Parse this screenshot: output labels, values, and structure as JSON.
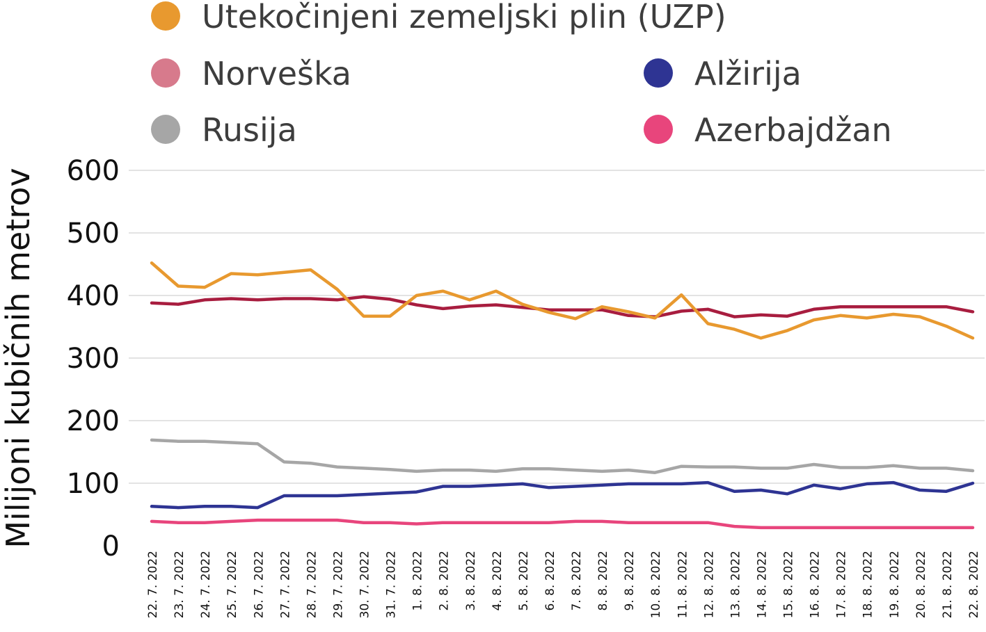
{
  "chart_data": {
    "type": "line",
    "title": "",
    "xlabel": "",
    "ylabel": "Milijoni kubičnih metrov",
    "ylim": [
      0,
      600
    ],
    "yticks": [
      0,
      100,
      200,
      300,
      400,
      500,
      600
    ],
    "grid": true,
    "legend_position": "top",
    "x": [
      "22. 7. 2022",
      "23. 7. 2022",
      "24. 7. 2022",
      "25. 7. 2022",
      "26. 7. 2022",
      "27. 7. 2022",
      "28. 7. 2022",
      "29. 7. 2022",
      "30. 7. 2022",
      "31. 7. 2022",
      "1. 8. 2022",
      "2. 8. 2022",
      "3. 8. 2022",
      "4. 8. 2022",
      "5. 8. 2022",
      "6. 8. 2022",
      "7. 8. 2022",
      "8. 8. 2022",
      "9. 8. 2022",
      "10. 8. 2022",
      "11. 8. 2022",
      "12. 8. 2022",
      "13. 8. 2022",
      "14. 8. 2022",
      "15. 8. 2022",
      "16. 8. 2022",
      "17. 8. 2022",
      "18. 8. 2022",
      "19. 8. 2022",
      "20. 8. 2022",
      "21. 8. 2022",
      "22. 8. 2022"
    ],
    "series": [
      {
        "name": "Utekočinjeni zemeljski plin (UZP)",
        "color": "#E8992F",
        "values": [
          452,
          415,
          413,
          435,
          433,
          437,
          441,
          410,
          367,
          367,
          400,
          407,
          393,
          407,
          386,
          373,
          363,
          382,
          374,
          364,
          401,
          355,
          346,
          332,
          344,
          361,
          368,
          364,
          370,
          366,
          351,
          332
        ]
      },
      {
        "name": "Norveška",
        "color": "#A81D3F",
        "legend_color": "#D77A8C",
        "values": [
          388,
          386,
          393,
          395,
          393,
          395,
          395,
          393,
          398,
          394,
          385,
          379,
          383,
          385,
          381,
          377,
          377,
          377,
          368,
          366,
          375,
          378,
          366,
          369,
          367,
          378,
          382,
          382,
          382,
          382,
          382,
          374
        ]
      },
      {
        "name": "Alžirija",
        "color": "#2E3493",
        "values": [
          63,
          61,
          63,
          63,
          61,
          80,
          80,
          80,
          82,
          84,
          86,
          95,
          95,
          97,
          99,
          93,
          95,
          97,
          99,
          99,
          99,
          101,
          87,
          89,
          83,
          97,
          91,
          99,
          101,
          89,
          87,
          100
        ]
      },
      {
        "name": "Rusija",
        "color": "#A6A6A6",
        "values": [
          169,
          167,
          167,
          165,
          163,
          134,
          132,
          126,
          124,
          122,
          119,
          121,
          121,
          119,
          123,
          123,
          121,
          119,
          121,
          117,
          127,
          126,
          126,
          124,
          124,
          130,
          125,
          125,
          128,
          124,
          124,
          120
        ]
      },
      {
        "name": "Azerbajdžan",
        "color": "#E8457C",
        "values": [
          39,
          37,
          37,
          39,
          41,
          41,
          41,
          41,
          37,
          37,
          35,
          37,
          37,
          37,
          37,
          37,
          39,
          39,
          37,
          37,
          37,
          37,
          31,
          29,
          29,
          29,
          29,
          29,
          29,
          29,
          29,
          29
        ]
      }
    ]
  }
}
